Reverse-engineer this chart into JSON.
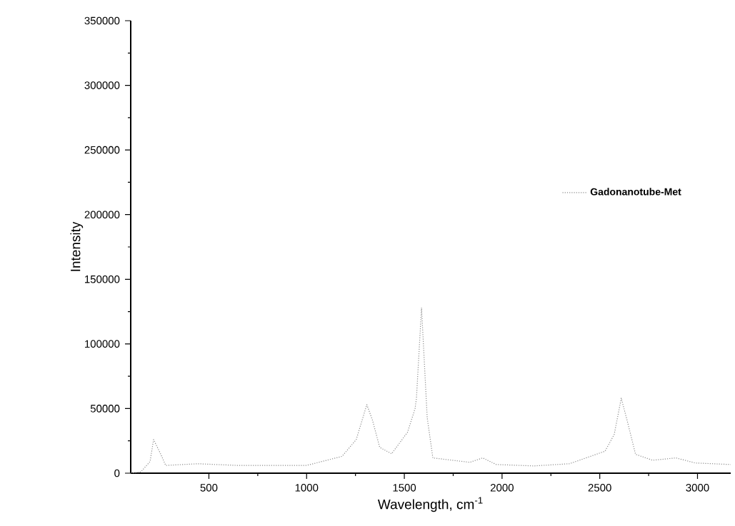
{
  "chart_data": {
    "type": "line",
    "xlabel": "Wavelength, cm$^{-1}$",
    "ylabel": "Intensity",
    "xlim": [
      100,
      3170
    ],
    "xticks": [
      500,
      1000,
      1500,
      2000,
      2500,
      3000
    ],
    "ylim": [
      0,
      350000
    ],
    "yticks": [
      0,
      50000,
      100000,
      150000,
      200000,
      250000,
      300000,
      350000
    ],
    "grid": false,
    "legend": "right",
    "marker": "none",
    "line_style": "dotted",
    "series": [
      {
        "name": "Gadonanotube-Met",
        "color": "#8c8c8c",
        "x": [
          100,
          152,
          199,
          217,
          254,
          279,
          443,
          647,
          1000,
          1181,
          1254,
          1308,
          1337,
          1374,
          1435,
          1508,
          1516,
          1555,
          1562,
          1588,
          1617,
          1646,
          1835,
          1901,
          1970,
          2163,
          2345,
          2527,
          2574,
          2610,
          2643,
          2683,
          2770,
          2890,
          2988,
          3170
        ],
        "values": [
          0,
          1000,
          9000,
          26000,
          14600,
          6000,
          7300,
          6000,
          6000,
          13000,
          26000,
          53000,
          41000,
          20000,
          15000,
          30000,
          31500,
          50000,
          58000,
          128000,
          43000,
          11800,
          8400,
          11800,
          6700,
          5600,
          7300,
          17000,
          30000,
          58000,
          39000,
          14600,
          10000,
          11800,
          7900,
          6700
        ]
      }
    ]
  }
}
